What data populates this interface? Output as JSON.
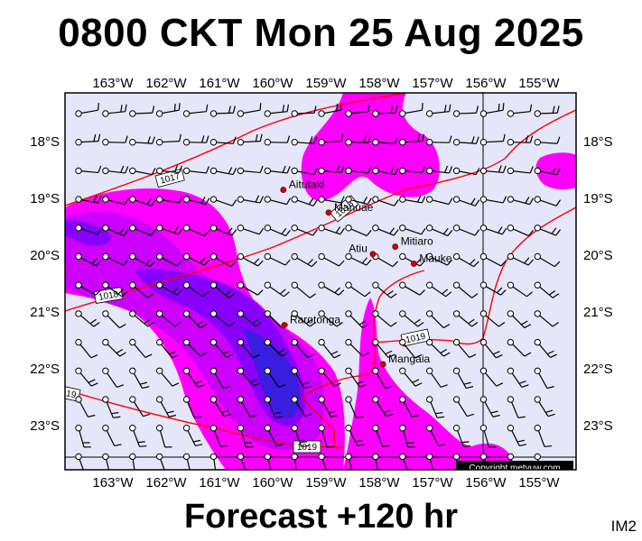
{
  "title": "0800 CKT Mon 25 Aug 2025",
  "subtitle": "Forecast +120 hr",
  "map_code": "IM2",
  "copyright": "Copyright metvuw.com",
  "colors": {
    "background": "#e6e6fa",
    "rain_light": "#ff00ff",
    "rain_medium": "#cc00ff",
    "rain_heavy": "#8800ff",
    "rain_heaviest": "#3a1ee0",
    "isobar": "#ff0000",
    "place_dot": "#cc0000"
  },
  "lon_ticks": [
    "163°W",
    "162°W",
    "161°W",
    "160°W",
    "159°W",
    "158°W",
    "157°W",
    "156°W",
    "155°W"
  ],
  "lat_ticks": [
    "18°S",
    "19°S",
    "20°S",
    "21°S",
    "22°S",
    "23°S"
  ],
  "places": [
    {
      "name": "Aitutaki",
      "lon": -159.8,
      "lat": -18.85
    },
    {
      "name": "Manuae",
      "lon": -158.95,
      "lat": -19.25
    },
    {
      "name": "Atiu",
      "lon": -158.12,
      "lat": -19.98
    },
    {
      "name": "Mitiaro",
      "lon": -157.7,
      "lat": -19.85
    },
    {
      "name": "Mauke",
      "lon": -157.35,
      "lat": -20.15
    },
    {
      "name": "Rarotonga",
      "lon": -159.78,
      "lat": -21.23
    },
    {
      "name": "Mangaia",
      "lon": -157.93,
      "lat": -21.92
    }
  ],
  "isobars": [
    "1017",
    "1018",
    "1018",
    "1019",
    "1019",
    "19"
  ]
}
